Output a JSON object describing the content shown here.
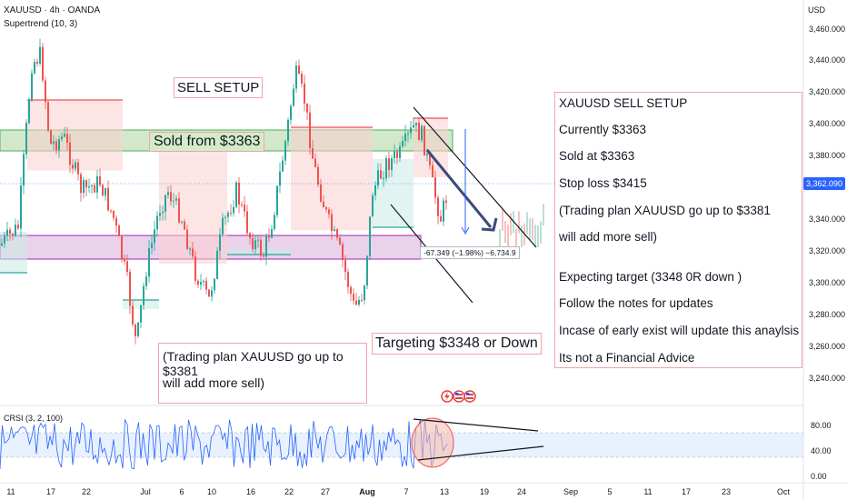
{
  "header": {
    "title": "XAUUSD · 4h · OANDA",
    "indicator": "Supertrend (10, 3)"
  },
  "price_axis": {
    "currency": "USD",
    "labels": [
      "3,460.000",
      "3,440.000",
      "3,420.000",
      "3,400.000",
      "3,380.000",
      "3,360.000",
      "3,340.000",
      "3,320.000",
      "3,300.000",
      "3,280.000",
      "3,260.000",
      "3,240.000"
    ],
    "current_price": "3,362.090"
  },
  "time_axis": {
    "labels": [
      {
        "text": "11",
        "bold": false
      },
      {
        "text": "17",
        "bold": false
      },
      {
        "text": "22",
        "bold": false
      },
      {
        "text": "Jul",
        "bold": false
      },
      {
        "text": "6",
        "bold": false
      },
      {
        "text": "10",
        "bold": false
      },
      {
        "text": "16",
        "bold": false
      },
      {
        "text": "22",
        "bold": false
      },
      {
        "text": "27",
        "bold": false
      },
      {
        "text": "Aug",
        "bold": true
      },
      {
        "text": "7",
        "bold": false
      },
      {
        "text": "13",
        "bold": false
      },
      {
        "text": "19",
        "bold": false
      },
      {
        "text": "24",
        "bold": false
      },
      {
        "text": "Sep",
        "bold": false
      },
      {
        "text": "5",
        "bold": false
      },
      {
        "text": "11",
        "bold": false
      },
      {
        "text": "17",
        "bold": false
      },
      {
        "text": "23",
        "bold": false
      },
      {
        "text": "Oct",
        "bold": false
      }
    ]
  },
  "annotations": {
    "sell_setup": "SELL SETUP",
    "sold_from": "Sold from $3363",
    "plan_line1": "(Trading plan XAUUSD go up to $3381",
    "plan_line2": "will add more sell)",
    "targeting": "Targeting $3348 or Down",
    "measure": "-67.349 (−1.98%) −6,734.9"
  },
  "plan_box": {
    "lines": [
      "XAUUSD SELL SETUP",
      "Currently $3363",
      "Sold at $3363",
      "Stop loss $3415",
      "(Trading plan XAUUSD go up to $3381",
      "will add more sell)",
      "Expecting target (3348 0R down )",
      "Follow the notes for updates",
      "Incase of early exist will update this anaylsis",
      "Its not a Financial Advice"
    ]
  },
  "indicator_pane": {
    "name": "CRSI (3, 2, 100)",
    "levels": [
      "80.00",
      "40.00",
      "0.00"
    ]
  },
  "colors": {
    "bull": "#26a69a",
    "bear": "#ef5350",
    "accent": "#2962ff",
    "sell_zone": "#9acd8c",
    "buy_zone": "#c77dc7"
  },
  "icons": [
    "lightning-event-icon",
    "us-flag-event-icon",
    "us-flag-event-icon-2"
  ]
}
